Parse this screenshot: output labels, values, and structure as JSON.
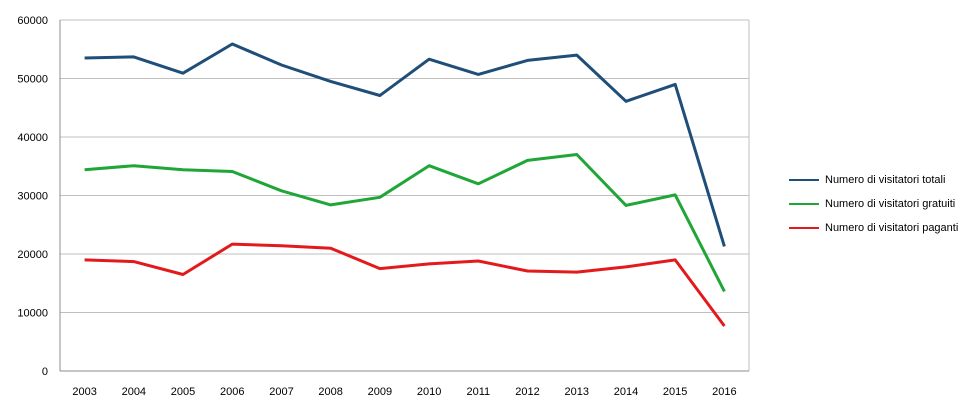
{
  "chart_data": {
    "type": "line",
    "title": "",
    "xlabel": "",
    "ylabel": "",
    "categories": [
      "2003",
      "2004",
      "2005",
      "2006",
      "2007",
      "2008",
      "2009",
      "2010",
      "2011",
      "2012",
      "2013",
      "2014",
      "2015",
      "2016"
    ],
    "ylim": [
      0,
      60000
    ],
    "yticks": [
      "0",
      "10000",
      "20000",
      "30000",
      "40000",
      "50000",
      "60000"
    ],
    "grid": true,
    "legend_position": "right",
    "series": [
      {
        "name": "Numero di visitatori totali",
        "color": "#1f4e79",
        "values": [
          53500,
          53700,
          50900,
          55900,
          52300,
          49500,
          47100,
          53300,
          50700,
          53100,
          54000,
          46100,
          49000,
          21300
        ]
      },
      {
        "name": "Numero di visitatori gratuiti",
        "color": "#1fa637",
        "values": [
          34400,
          35100,
          34400,
          34100,
          30800,
          28400,
          29700,
          35100,
          32000,
          36000,
          37000,
          28300,
          30100,
          13600
        ]
      },
      {
        "name": "Numero di visitatori paganti",
        "color": "#e31a1c",
        "values": [
          19000,
          18700,
          16500,
          21700,
          21400,
          21000,
          17500,
          18300,
          18800,
          17100,
          16900,
          17800,
          19000,
          7700
        ]
      }
    ]
  }
}
